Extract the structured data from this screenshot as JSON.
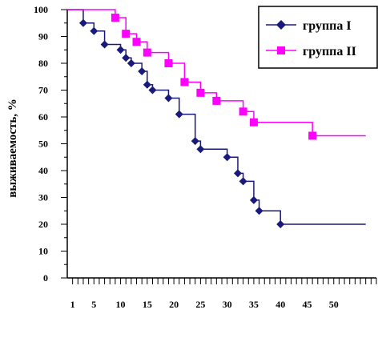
{
  "chart_data": {
    "type": "line",
    "title": "",
    "xlabel": "",
    "ylabel": "выживаемость, %",
    "xlim": [
      0,
      58
    ],
    "ylim": [
      0,
      100
    ],
    "x_ticks": [
      1,
      5,
      10,
      15,
      20,
      25,
      30,
      35,
      40,
      45,
      50
    ],
    "y_ticks": [
      0,
      10,
      20,
      30,
      40,
      50,
      60,
      70,
      80,
      90,
      100
    ],
    "grid": false,
    "legend_position": "top-right",
    "series": [
      {
        "name": "группа I",
        "color": "#1a1a7a",
        "marker": "diamond",
        "step_points": [
          [
            0,
            100
          ],
          [
            3,
            95
          ],
          [
            5,
            92
          ],
          [
            7,
            87
          ],
          [
            10,
            85
          ],
          [
            11,
            82
          ],
          [
            12,
            80
          ],
          [
            14,
            77
          ],
          [
            15,
            72
          ],
          [
            16,
            70
          ],
          [
            19,
            67
          ],
          [
            21,
            61
          ],
          [
            24,
            51
          ],
          [
            25,
            48
          ],
          [
            30,
            45
          ],
          [
            32,
            39
          ],
          [
            33,
            36
          ],
          [
            35,
            29
          ],
          [
            36,
            25
          ],
          [
            40,
            20
          ],
          [
            56,
            20
          ]
        ],
        "markers": [
          [
            3,
            95
          ],
          [
            5,
            92
          ],
          [
            7,
            87
          ],
          [
            10,
            85
          ],
          [
            11,
            82
          ],
          [
            12,
            80
          ],
          [
            14,
            77
          ],
          [
            15,
            72
          ],
          [
            16,
            70
          ],
          [
            19,
            67
          ],
          [
            21,
            61
          ],
          [
            24,
            51
          ],
          [
            25,
            48
          ],
          [
            30,
            45
          ],
          [
            32,
            39
          ],
          [
            33,
            36
          ],
          [
            35,
            29
          ],
          [
            36,
            25
          ],
          [
            40,
            20
          ]
        ]
      },
      {
        "name": "группа II",
        "color": "#ff00ff",
        "marker": "square",
        "step_points": [
          [
            0,
            100
          ],
          [
            9,
            97
          ],
          [
            11,
            91
          ],
          [
            13,
            88
          ],
          [
            15,
            84
          ],
          [
            19,
            80
          ],
          [
            22,
            73
          ],
          [
            25,
            69
          ],
          [
            28,
            66
          ],
          [
            33,
            62
          ],
          [
            35,
            58
          ],
          [
            46,
            53
          ],
          [
            56,
            53
          ]
        ],
        "markers": [
          [
            9,
            97
          ],
          [
            11,
            91
          ],
          [
            13,
            88
          ],
          [
            15,
            84
          ],
          [
            19,
            80
          ],
          [
            22,
            73
          ],
          [
            25,
            69
          ],
          [
            28,
            66
          ],
          [
            33,
            62
          ],
          [
            35,
            58
          ],
          [
            46,
            53
          ]
        ]
      }
    ]
  }
}
